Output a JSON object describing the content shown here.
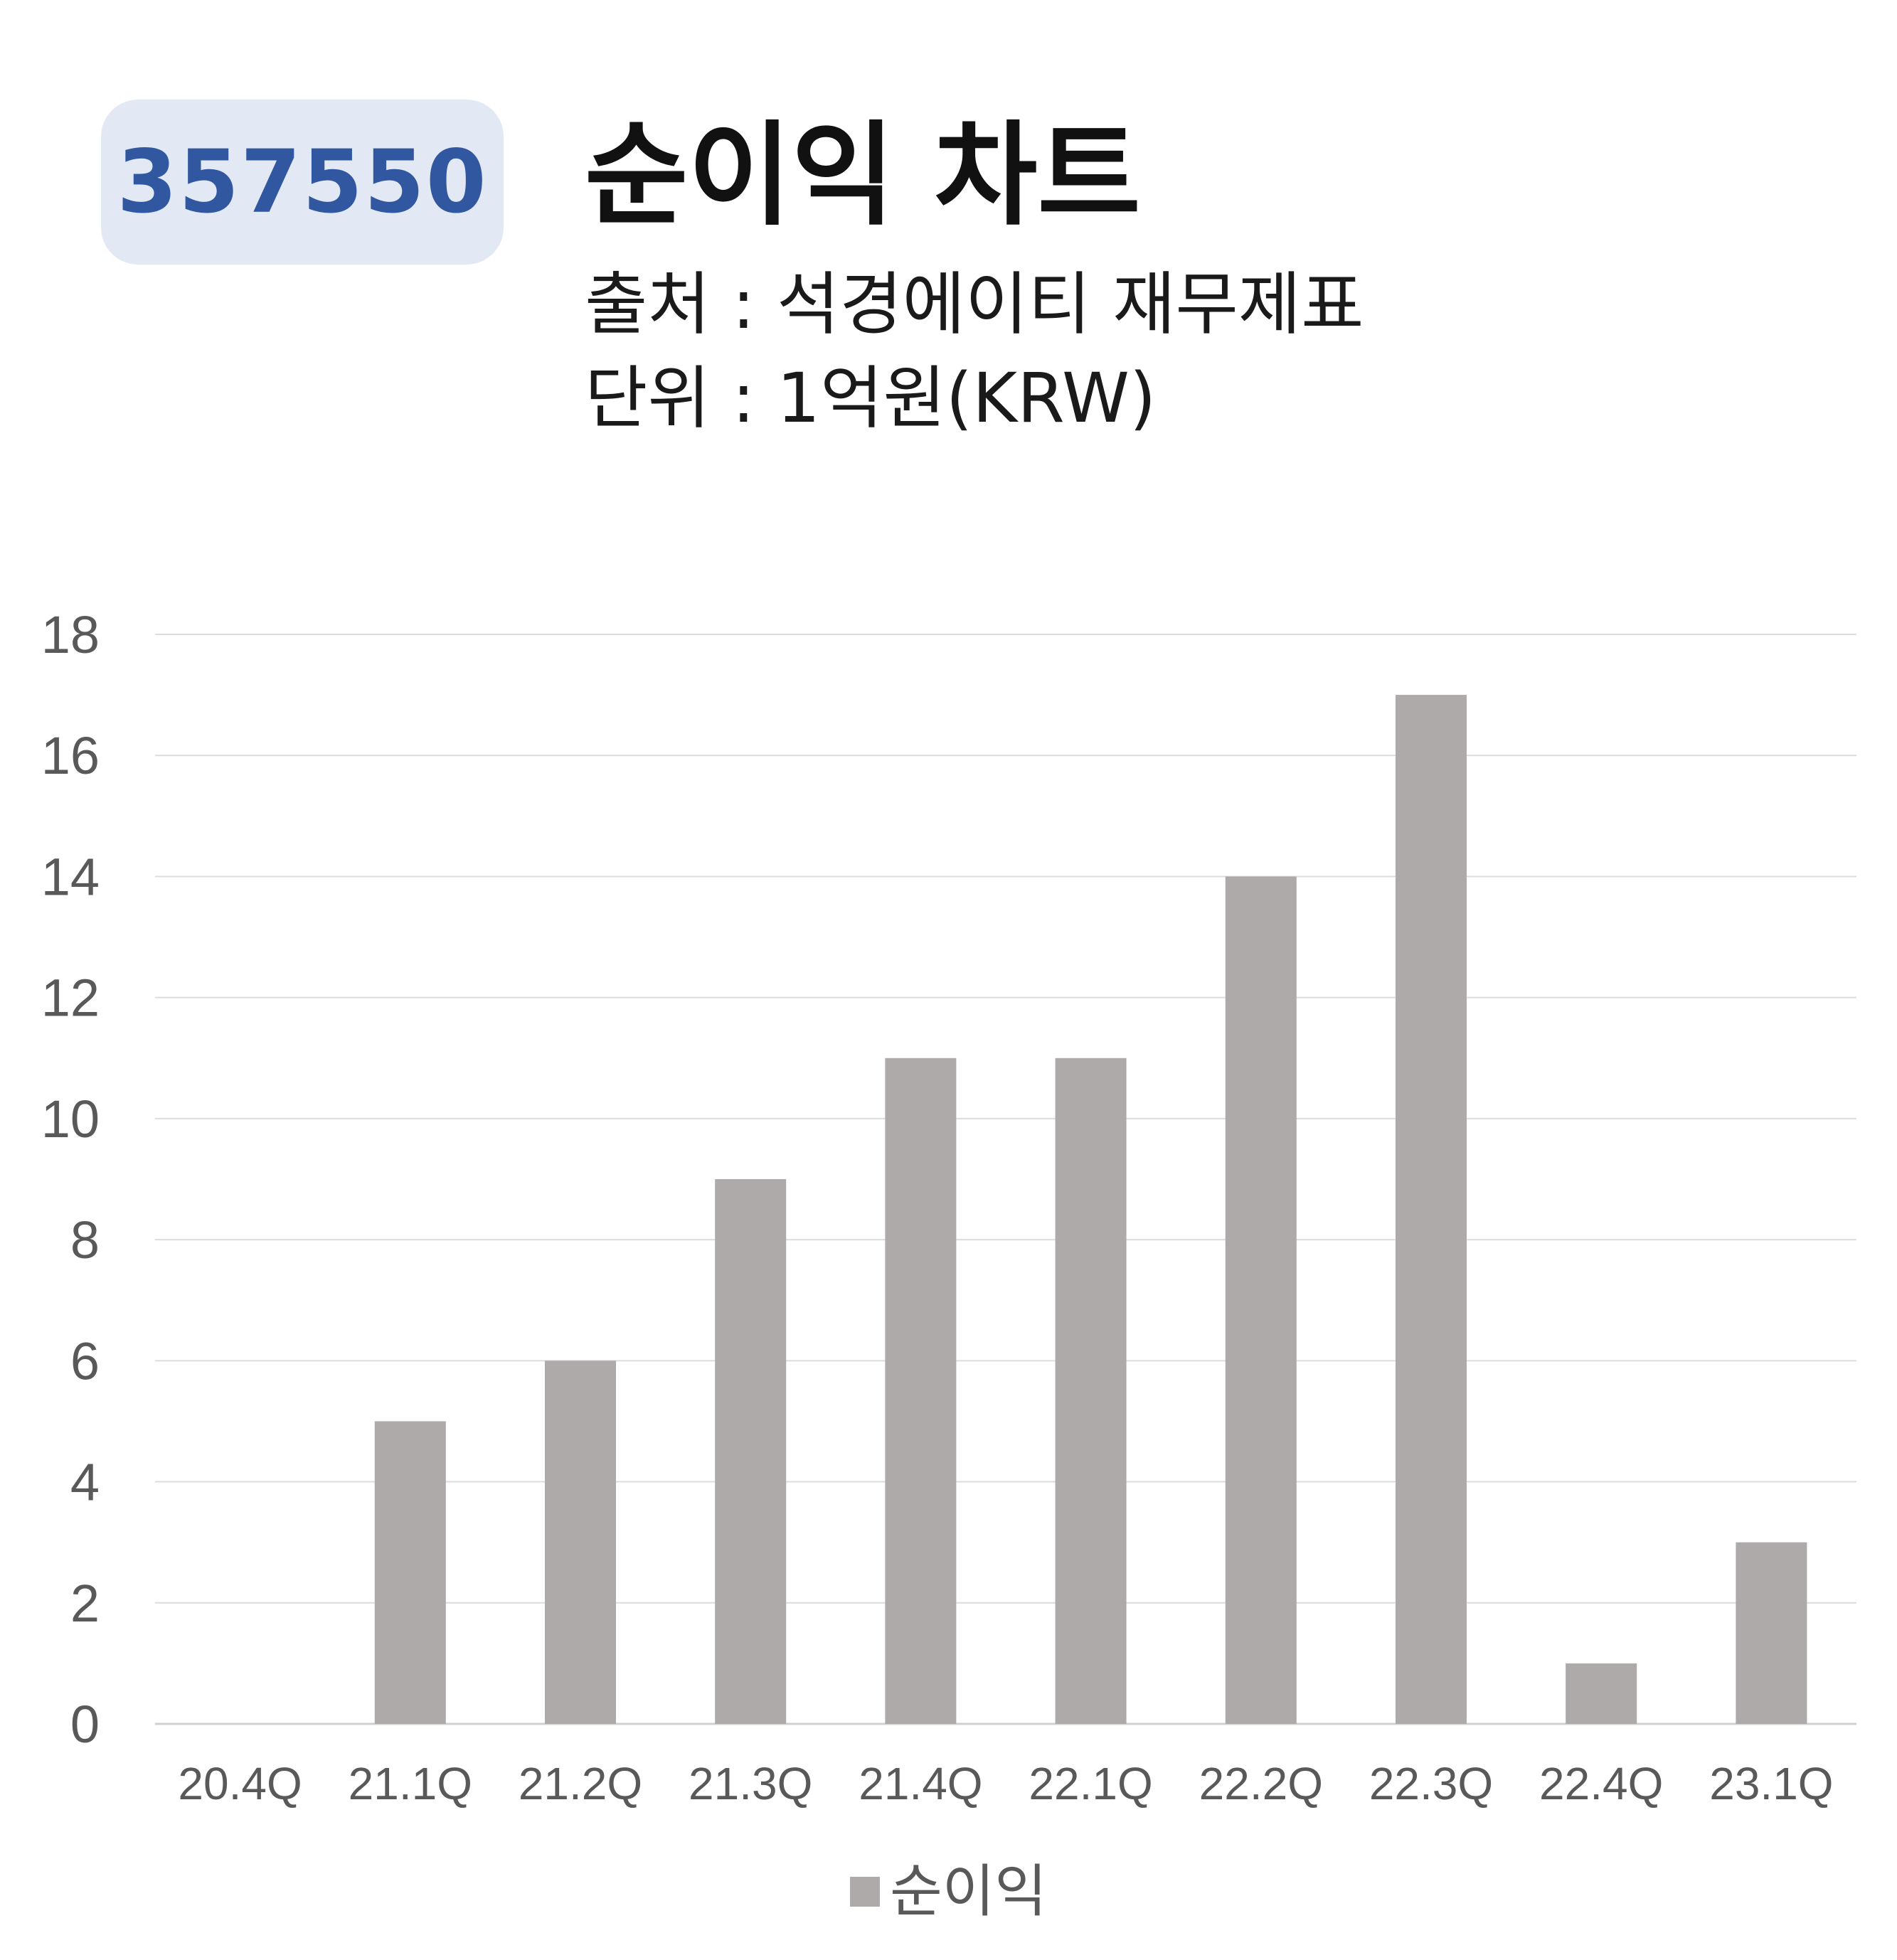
{
  "header": {
    "code": "357550",
    "title": "순이익 차트",
    "source": "출처 : 석경에이티 재무제표",
    "unit": "단위 : 1억원(KRW)"
  },
  "chart_data": {
    "type": "bar",
    "title": "순이익 차트",
    "categories": [
      "20.4Q",
      "21.1Q",
      "21.2Q",
      "21.3Q",
      "21.4Q",
      "22.1Q",
      "22.2Q",
      "22.3Q",
      "22.4Q",
      "23.1Q"
    ],
    "series": [
      {
        "name": "순이익",
        "values": [
          0,
          5,
          6,
          9,
          11,
          11,
          14,
          17,
          1,
          3
        ],
        "color": "#aeaaaa"
      }
    ],
    "yticks": [
      "0",
      "2",
      "4",
      "6",
      "8",
      "10",
      "12",
      "14",
      "16",
      "18"
    ],
    "ylim": [
      0,
      18
    ],
    "grid": true,
    "legend_position": "bottom-center",
    "xlabel": "",
    "ylabel": ""
  }
}
